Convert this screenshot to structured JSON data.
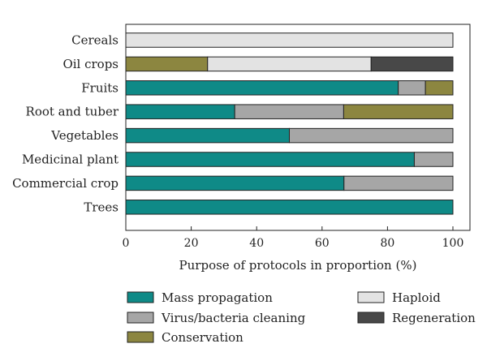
{
  "chart_data": {
    "type": "bar",
    "orientation": "horizontal",
    "stacked": true,
    "categories": [
      "Cereals",
      "Oil crops",
      "Fruits",
      "Root and tuber",
      "Vegetables",
      "Medicinal plant",
      "Commercial crop",
      "Trees"
    ],
    "xlabel": "Purpose of protocols in proportion (%)",
    "ylabel": "",
    "xlim": [
      0,
      100
    ],
    "xticks": [
      0,
      20,
      40,
      60,
      80,
      100
    ],
    "grid": false,
    "legend_position": "bottom",
    "series": [
      {
        "name": "Mass propagation",
        "color": "#0f8a87",
        "values": [
          0,
          0,
          83.3,
          33.3,
          50,
          88.2,
          66.7,
          100
        ]
      },
      {
        "name": "Virus/bacteria cleaning",
        "color": "#a6a6a6",
        "values": [
          0,
          0,
          8.3,
          33.3,
          50,
          11.8,
          33.3,
          0
        ]
      },
      {
        "name": "Conservation",
        "color": "#8c8640",
        "values": [
          0,
          25,
          8.4,
          33.4,
          0,
          0,
          0,
          0
        ]
      },
      {
        "name": "Haploid",
        "color": "#e3e3e3",
        "values": [
          100,
          50,
          0,
          0,
          0,
          0,
          0,
          0
        ]
      },
      {
        "name": "Regeneration",
        "color": "#484848",
        "values": [
          0,
          25,
          0,
          0,
          0,
          0,
          0,
          0
        ]
      }
    ]
  }
}
